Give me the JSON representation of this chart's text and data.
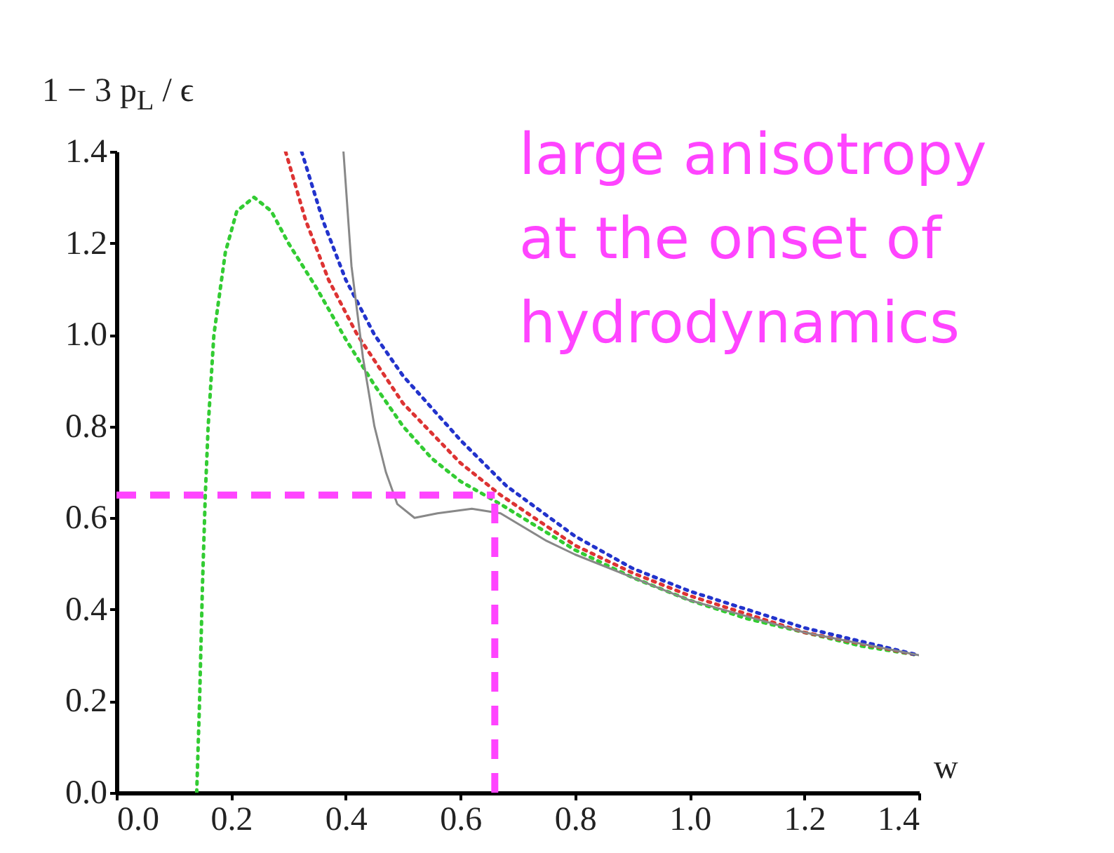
{
  "chart_data": {
    "type": "line",
    "xlabel": "w",
    "ylabel": "1 − 3 p$_{L}$ / ϵ",
    "xlim": [
      0,
      1.4
    ],
    "ylim": [
      0,
      1.4
    ],
    "xticks": [
      {
        "value": 0,
        "label": "0.0"
      },
      0.2,
      0.4,
      0.6,
      0.8,
      {
        "value": 1,
        "label": "1.0"
      },
      1.2,
      1.4
    ],
    "yticks": [
      {
        "value": 0,
        "label": "0.0"
      },
      0.2,
      0.4,
      0.6,
      0.8,
      {
        "value": 1,
        "label": "1.0"
      },
      1.2,
      1.4
    ],
    "grid": false,
    "marker": "none",
    "series": [
      {
        "color": "#33cc33",
        "line_style": "dotted",
        "x": [
          0.14,
          0.145,
          0.15,
          0.155,
          0.16,
          0.17,
          0.19,
          0.21,
          0.24,
          0.27,
          0.3,
          0.35,
          0.4,
          0.45,
          0.5,
          0.55,
          0.6,
          0.67,
          0.8,
          0.9,
          1.0,
          1.1,
          1.2,
          1.3,
          1.4
        ],
        "values": [
          0,
          0.2,
          0.45,
          0.65,
          0.8,
          1.0,
          1.18,
          1.27,
          1.3,
          1.27,
          1.2,
          1.1,
          0.99,
          0.89,
          0.8,
          0.73,
          0.68,
          0.63,
          0.53,
          0.47,
          0.42,
          0.38,
          0.35,
          0.32,
          0.3
        ]
      },
      {
        "color": "#dd3333",
        "line_style": "dotted",
        "x": [
          0.295,
          0.33,
          0.37,
          0.42,
          0.5,
          0.6,
          0.67,
          0.8,
          0.9,
          1.0,
          1.2,
          1.4
        ],
        "values": [
          1.4,
          1.25,
          1.12,
          1.0,
          0.85,
          0.72,
          0.65,
          0.54,
          0.48,
          0.43,
          0.35,
          0.3
        ]
      },
      {
        "color": "#2233cc",
        "line_style": "dotted",
        "x": [
          0.323,
          0.36,
          0.4,
          0.45,
          0.5,
          0.6,
          0.68,
          0.8,
          0.9,
          1.0,
          1.2,
          1.4
        ],
        "values": [
          1.4,
          1.25,
          1.12,
          1.0,
          0.91,
          0.77,
          0.67,
          0.56,
          0.49,
          0.44,
          0.36,
          0.3
        ]
      },
      {
        "color": "#888888",
        "line_style": "solid",
        "x": [
          0.396,
          0.41,
          0.43,
          0.45,
          0.47,
          0.49,
          0.52,
          0.56,
          0.62,
          0.67,
          0.75,
          0.8,
          0.9,
          1.0,
          1.2,
          1.4
        ],
        "values": [
          1.4,
          1.15,
          0.95,
          0.8,
          0.7,
          0.63,
          0.6,
          0.61,
          0.62,
          0.61,
          0.55,
          0.52,
          0.47,
          0.42,
          0.35,
          0.3
        ]
      }
    ],
    "ref_lines": [
      {
        "axis": "y",
        "value": 0.65,
        "color": "#ff44ff",
        "line_style": "dashed"
      },
      {
        "axis": "x",
        "value": 0.66,
        "color": "#ff44ff",
        "line_style": "dashed"
      }
    ],
    "annotations": [
      "large anisotropy at the onset of hydrodynamics"
    ]
  }
}
